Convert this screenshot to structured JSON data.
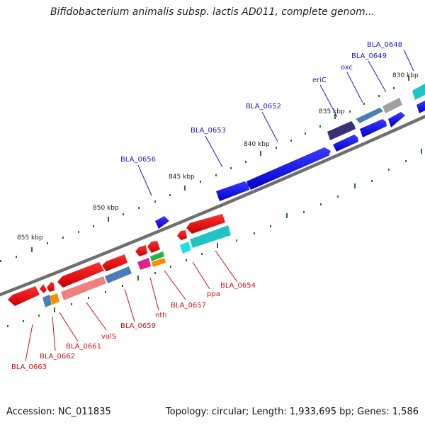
{
  "title": "Bifidobacterium animalis subsp. lactis AD011, complete genom...",
  "footer": {
    "accession": "Accession: NC_011835",
    "summary": "Topology: circular; Length: 1,933,695 bp; Genes: 1,586"
  },
  "colors": {
    "label_forward": "#1a1acc",
    "label_reverse": "#cc1111",
    "backbone": "#888888",
    "tick": "#1b7a1b"
  },
  "scale_labels": [
    "830 kbp",
    "835 kbp",
    "840 kbp",
    "845 kbp",
    "850 kbp",
    "855 kbp"
  ],
  "forward_labels": [
    "BLA_0648",
    "BLA_0649",
    "oxc",
    "eriC",
    "BLA_0652",
    "BLA_0653",
    "BLA_0656"
  ],
  "reverse_labels": [
    "BLA_0654",
    "ppa",
    "BLA_0657",
    "nth",
    "BLA_0659",
    "valS",
    "BLA_0661",
    "BLA_0662",
    "BLA_0663"
  ]
}
